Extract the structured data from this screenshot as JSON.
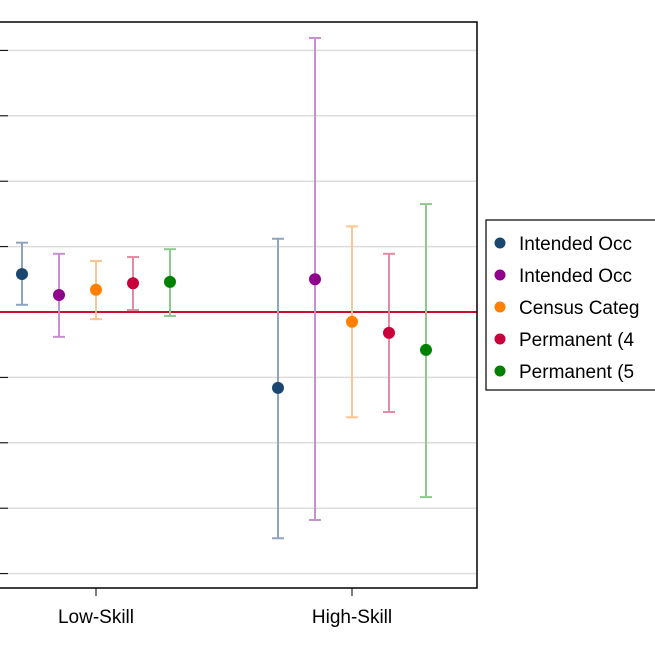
{
  "chart_data": {
    "type": "scatter",
    "subtype": "point-with-error-bars",
    "categories": [
      "Low-Skill",
      "High-Skill"
    ],
    "ylim": [
      -4.3,
      4.4
    ],
    "y_gridlines": [
      -4,
      -3,
      -2,
      -1,
      0,
      1,
      2,
      3,
      4
    ],
    "reference_line": 0,
    "reference_line_color": "#c8102e",
    "grid": true,
    "legend_placement": "right",
    "series": [
      {
        "name": "Intended Occ",
        "color": "#1a476f",
        "ci_color": "#90a4bd",
        "points": [
          {
            "category": "Low-Skill",
            "y": 0.58,
            "lo": 0.11,
            "hi": 1.06
          },
          {
            "category": "High-Skill",
            "y": -1.16,
            "lo": -3.46,
            "hi": 1.12
          }
        ]
      },
      {
        "name": "Intended Occ",
        "color": "#90008c",
        "ci_color": "#c98fd0",
        "points": [
          {
            "category": "Low-Skill",
            "y": 0.26,
            "lo": -0.38,
            "hi": 0.89
          },
          {
            "category": "High-Skill",
            "y": 0.5,
            "lo": -3.18,
            "hi": 4.19
          }
        ]
      },
      {
        "name": "Census Categ",
        "color": "#ff8000",
        "ci_color": "#ffc58f",
        "points": [
          {
            "category": "Low-Skill",
            "y": 0.34,
            "lo": -0.11,
            "hi": 0.78
          },
          {
            "category": "High-Skill",
            "y": -0.15,
            "lo": -1.61,
            "hi": 1.31
          }
        ]
      },
      {
        "name": "Permanent (4",
        "color": "#c8003c",
        "ci_color": "#e38ba3",
        "points": [
          {
            "category": "Low-Skill",
            "y": 0.44,
            "lo": 0.03,
            "hi": 0.84
          },
          {
            "category": "High-Skill",
            "y": -0.32,
            "lo": -1.53,
            "hi": 0.89
          }
        ]
      },
      {
        "name": "Permanent (5",
        "color": "#008000",
        "ci_color": "#8fc98f",
        "points": [
          {
            "category": "Low-Skill",
            "y": 0.46,
            "lo": -0.06,
            "hi": 0.96
          },
          {
            "category": "High-Skill",
            "y": -0.58,
            "lo": -2.83,
            "hi": 1.65
          }
        ]
      }
    ]
  }
}
